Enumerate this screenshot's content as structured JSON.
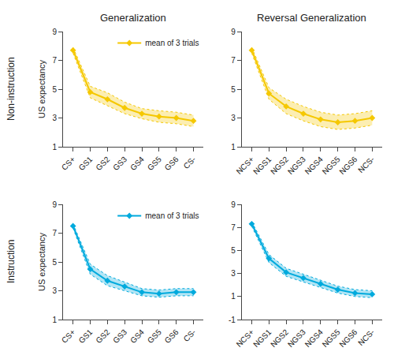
{
  "chart_data": [
    {
      "type": "line",
      "title": "Generalization",
      "ylabel": "US expectancy",
      "annotations": [
        {
          "text": "Non-instruction"
        }
      ],
      "categories": [
        "CS+",
        "GS1",
        "GS2",
        "GS3",
        "GS4",
        "GS5",
        "GS6",
        "CS-"
      ],
      "series": [
        {
          "name": "mean of 3 trials",
          "color": "#F5C800",
          "marker": "diamond",
          "values": [
            7.7,
            4.8,
            4.3,
            3.7,
            3.3,
            3.1,
            3.0,
            2.8
          ],
          "upper": [
            7.9,
            5.2,
            4.75,
            4.1,
            3.65,
            3.5,
            3.4,
            3.2
          ],
          "lower": [
            7.5,
            4.4,
            3.85,
            3.3,
            2.95,
            2.7,
            2.6,
            2.4
          ]
        }
      ],
      "ylim": [
        1,
        9
      ],
      "yticks": [
        1,
        3,
        5,
        7,
        9
      ],
      "grid": false,
      "legend": "upper right"
    },
    {
      "type": "line",
      "title": "Reversal Generalization",
      "categories": [
        "NCS+",
        "NGS1",
        "NGS2",
        "NGS3",
        "NGS4",
        "NGS5",
        "NGS6",
        "NCS-"
      ],
      "series": [
        {
          "color": "#F5C800",
          "marker": "diamond",
          "values": [
            7.7,
            4.7,
            3.8,
            3.3,
            2.9,
            2.7,
            2.8,
            3.0
          ],
          "upper": [
            7.9,
            5.1,
            4.3,
            3.8,
            3.4,
            3.2,
            3.3,
            3.5
          ],
          "lower": [
            7.5,
            4.3,
            3.3,
            2.8,
            2.4,
            2.2,
            2.3,
            2.5
          ]
        }
      ],
      "ylim": [
        1,
        9
      ],
      "yticks": [
        1,
        3,
        5,
        7,
        9
      ],
      "grid": false
    },
    {
      "type": "line",
      "ylabel": "US expectancy",
      "annotations": [
        {
          "text": "Instruction"
        }
      ],
      "categories": [
        "CS+",
        "GS1",
        "GS2",
        "GS3",
        "GS4",
        "GS5",
        "GS6",
        "CS-"
      ],
      "series": [
        {
          "name": "mean of 3 trials",
          "color": "#00AADD",
          "marker": "diamond",
          "values": [
            7.5,
            4.5,
            3.7,
            3.3,
            2.9,
            2.8,
            2.9,
            2.9
          ],
          "upper": [
            7.65,
            4.85,
            4.05,
            3.6,
            3.15,
            3.05,
            3.15,
            3.15
          ],
          "lower": [
            7.35,
            4.15,
            3.35,
            3.0,
            2.65,
            2.55,
            2.65,
            2.65
          ]
        }
      ],
      "ylim": [
        1,
        9
      ],
      "yticks": [
        1,
        3,
        5,
        7,
        9
      ],
      "grid": false,
      "legend": "upper right"
    },
    {
      "type": "line",
      "categories": [
        "NCS+",
        "NGS1",
        "NGS2",
        "NGS3",
        "NGS4",
        "NGS5",
        "NGS6",
        "NCS-"
      ],
      "series": [
        {
          "color": "#00AADD",
          "marker": "diamond",
          "values": [
            7.3,
            4.3,
            3.1,
            2.6,
            2.1,
            1.6,
            1.3,
            1.2
          ],
          "upper": [
            7.5,
            4.65,
            3.45,
            2.95,
            2.45,
            1.9,
            1.6,
            1.5
          ],
          "lower": [
            7.1,
            3.95,
            2.75,
            2.25,
            1.75,
            1.3,
            1.0,
            0.9
          ]
        }
      ],
      "ylim": [
        -1,
        9
      ],
      "yticks": [
        -1,
        1,
        3,
        5,
        7,
        9
      ],
      "grid": false
    }
  ]
}
